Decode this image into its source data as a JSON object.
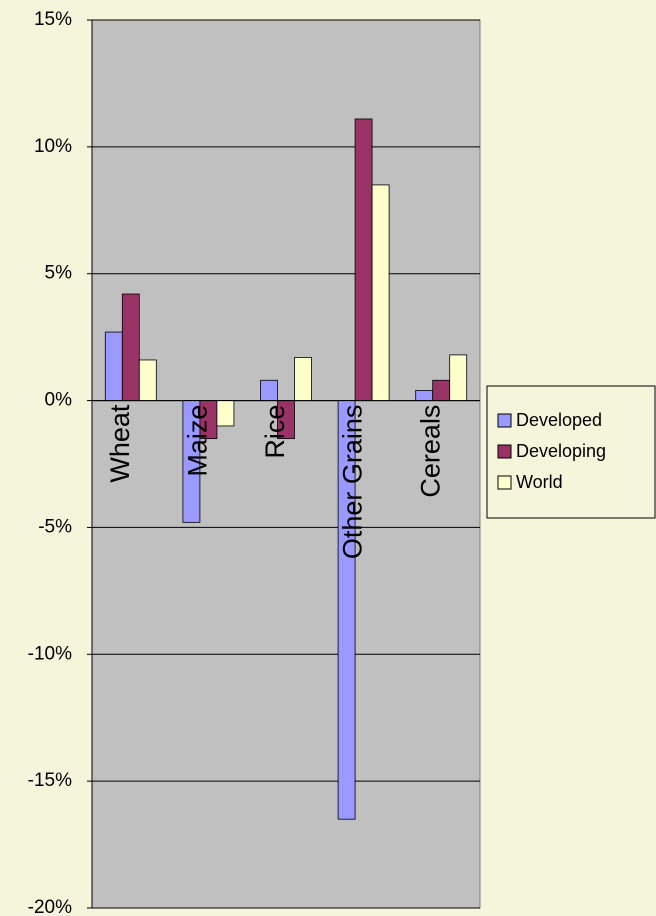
{
  "chart_data": {
    "type": "bar",
    "categories": [
      "Wheat",
      "Maize",
      "Rice",
      "Other Grains",
      "Cereals"
    ],
    "series": [
      {
        "name": "Developed",
        "color": "#9999ff",
        "values": [
          2.7,
          -4.8,
          0.8,
          -16.5,
          0.4
        ]
      },
      {
        "name": "Developing",
        "color": "#993366",
        "values": [
          4.2,
          -1.5,
          -1.5,
          11.1,
          0.8
        ]
      },
      {
        "name": "World",
        "color": "#ffffcc",
        "values": [
          1.6,
          -1.0,
          1.7,
          8.5,
          1.8
        ]
      }
    ],
    "ylim": [
      -20,
      15
    ],
    "yticks": [
      {
        "value": -20,
        "label": "-20%"
      },
      {
        "value": -15,
        "label": "-15%"
      },
      {
        "value": -10,
        "label": "-10%"
      },
      {
        "value": -5,
        "label": "-5%"
      },
      {
        "value": 0,
        "label": "0%"
      },
      {
        "value": 5,
        "label": "5%"
      },
      {
        "value": 10,
        "label": "10%"
      },
      {
        "value": 15,
        "label": "15%"
      }
    ],
    "grid": true
  }
}
